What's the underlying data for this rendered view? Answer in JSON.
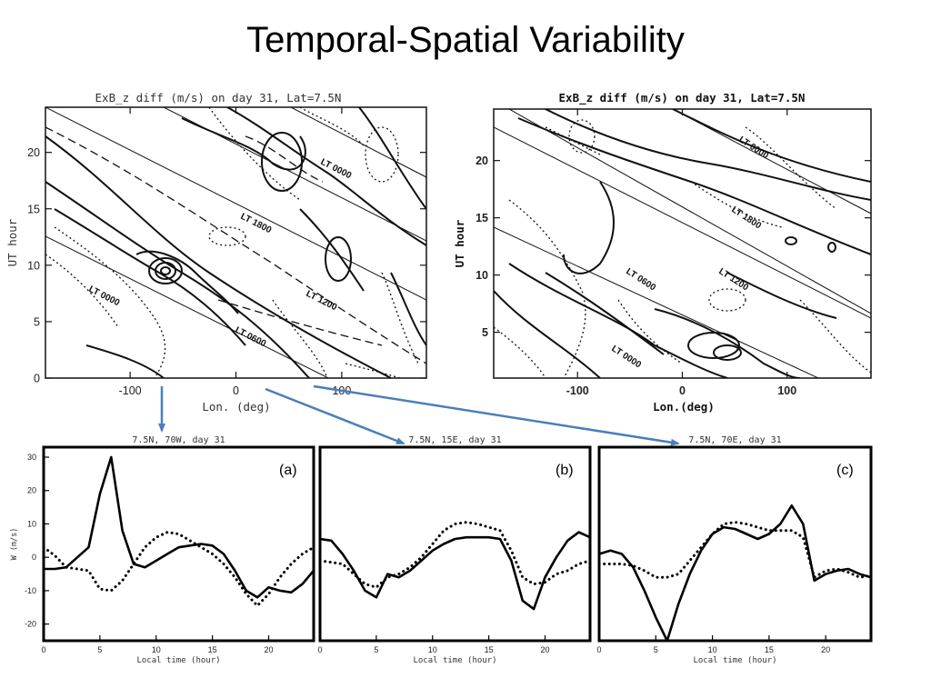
{
  "slide": {
    "title": "Temporal-Spatial Variability"
  },
  "contour_plots": [
    {
      "title": "ExB_z diff (m/s) on day 31, Lat=7.5N",
      "xlabel": "Lon. (deg)",
      "ylabel": "UT hour",
      "xticks": [
        -100,
        0,
        100
      ],
      "yticks": [
        0,
        5,
        10,
        15,
        20
      ],
      "lt_labels": [
        "LT 0000",
        "LT 0600",
        "LT 1200",
        "LT 1800",
        "LT 0000"
      ]
    },
    {
      "title": "ExB_z diff (m/s) on day 31, Lat=7.5N",
      "xlabel": "Lon.(deg)",
      "ylabel": "UT hour",
      "xticks": [
        -100,
        0,
        100
      ],
      "yticks": [
        5,
        10,
        15,
        20
      ],
      "lt_labels": [
        "LT 0000",
        "LT 0600",
        "LT 1200",
        "LT 1800",
        "LT 0000"
      ]
    }
  ],
  "chart_data": [
    {
      "type": "line",
      "title": "7.5N, 70W, day 31",
      "panel_label": "(a)",
      "xlabel": "Local time (hour)",
      "ylabel": "W (m/s)",
      "xlim": [
        0,
        24
      ],
      "ylim": [
        -25,
        33
      ],
      "xticks": [
        0,
        5,
        10,
        15,
        20
      ],
      "yticks": [
        -20,
        -10,
        0,
        10,
        20,
        30
      ],
      "series": [
        {
          "style": "solid",
          "x": [
            0,
            1,
            2,
            3,
            4,
            5,
            6,
            7,
            8,
            9,
            10,
            11,
            12,
            13,
            14,
            15,
            16,
            17,
            18,
            19,
            20,
            21,
            22,
            23,
            24
          ],
          "y": [
            -3.5,
            -3.5,
            -3,
            0,
            3,
            19,
            30,
            8,
            -2,
            -3,
            -1,
            1,
            3,
            3.5,
            4,
            3.5,
            1,
            -4,
            -10,
            -12,
            -9,
            -10,
            -10.5,
            -8,
            -4
          ]
        },
        {
          "style": "dotted",
          "x": [
            0,
            1,
            2,
            3,
            4,
            5,
            6,
            7,
            8,
            9,
            10,
            11,
            12,
            13,
            14,
            15,
            16,
            17,
            18,
            19,
            20,
            21,
            22,
            23,
            24
          ],
          "y": [
            3,
            0.5,
            -3,
            -3.5,
            -4,
            -9.5,
            -10,
            -7,
            -2,
            3,
            6,
            7.5,
            7,
            5,
            3,
            1,
            -2,
            -6,
            -11,
            -14.5,
            -11,
            -6,
            -2,
            1,
            3
          ]
        }
      ]
    },
    {
      "type": "line",
      "title": "7.5N, 15E, day 31",
      "panel_label": "(b)",
      "xlabel": "Local time (hour)",
      "ylabel": "",
      "xlim": [
        0,
        24
      ],
      "ylim": [
        -25,
        33
      ],
      "xticks": [
        0,
        5,
        10,
        15,
        20
      ],
      "yticks": [],
      "series": [
        {
          "style": "solid",
          "x": [
            0,
            1,
            2,
            3,
            4,
            5,
            6,
            7,
            8,
            9,
            10,
            11,
            12,
            13,
            14,
            15,
            16,
            17,
            18,
            19,
            20,
            21,
            22,
            23,
            24
          ],
          "y": [
            5.5,
            5,
            1,
            -4,
            -10,
            -12,
            -5,
            -6,
            -4,
            -1,
            2,
            4,
            5.5,
            6,
            6,
            6,
            5.5,
            -1,
            -13,
            -15.5,
            -6,
            0,
            5,
            7.5,
            6
          ]
        },
        {
          "style": "dotted",
          "x": [
            0,
            1,
            2,
            3,
            4,
            5,
            6,
            7,
            8,
            9,
            10,
            11,
            12,
            13,
            14,
            15,
            16,
            17,
            18,
            19,
            20,
            21,
            22,
            23,
            24
          ],
          "y": [
            -1,
            -1.5,
            -2,
            -5,
            -8,
            -9,
            -6,
            -5,
            -3,
            0,
            4,
            8,
            10,
            10.5,
            10,
            9,
            8,
            2,
            -6,
            -8,
            -7.5,
            -5,
            -4,
            -2,
            -1
          ]
        }
      ]
    },
    {
      "type": "line",
      "title": "7.5N, 70E, day 31",
      "panel_label": "(c)",
      "xlabel": "Local time (hour)",
      "ylabel": "",
      "xlim": [
        0,
        24
      ],
      "ylim": [
        -25,
        33
      ],
      "xticks": [
        0,
        5,
        10,
        15,
        20
      ],
      "yticks": [],
      "series": [
        {
          "style": "solid",
          "x": [
            0,
            1,
            2,
            3,
            4,
            5,
            6,
            7,
            8,
            9,
            10,
            11,
            12,
            13,
            14,
            15,
            16,
            17,
            18,
            19,
            20,
            21,
            22,
            23,
            24
          ],
          "y": [
            1,
            2,
            1,
            -3,
            -10,
            -18,
            -25,
            -14,
            -5,
            2,
            7,
            9,
            8.5,
            7,
            5.5,
            7,
            10,
            15.5,
            10,
            -7,
            -5,
            -4,
            -3.5,
            -5,
            -6
          ]
        },
        {
          "style": "dotted",
          "x": [
            0,
            1,
            2,
            3,
            4,
            5,
            6,
            7,
            8,
            9,
            10,
            11,
            12,
            13,
            14,
            15,
            16,
            17,
            18,
            19,
            20,
            21,
            22,
            23,
            24
          ],
          "y": [
            -2,
            -2,
            -2,
            -2.5,
            -4,
            -6,
            -6,
            -5,
            -1,
            3,
            7,
            10,
            10.5,
            10,
            9,
            8,
            8,
            8,
            6,
            -6,
            -4,
            -3.5,
            -4.5,
            -6,
            -5.5
          ]
        }
      ]
    }
  ]
}
